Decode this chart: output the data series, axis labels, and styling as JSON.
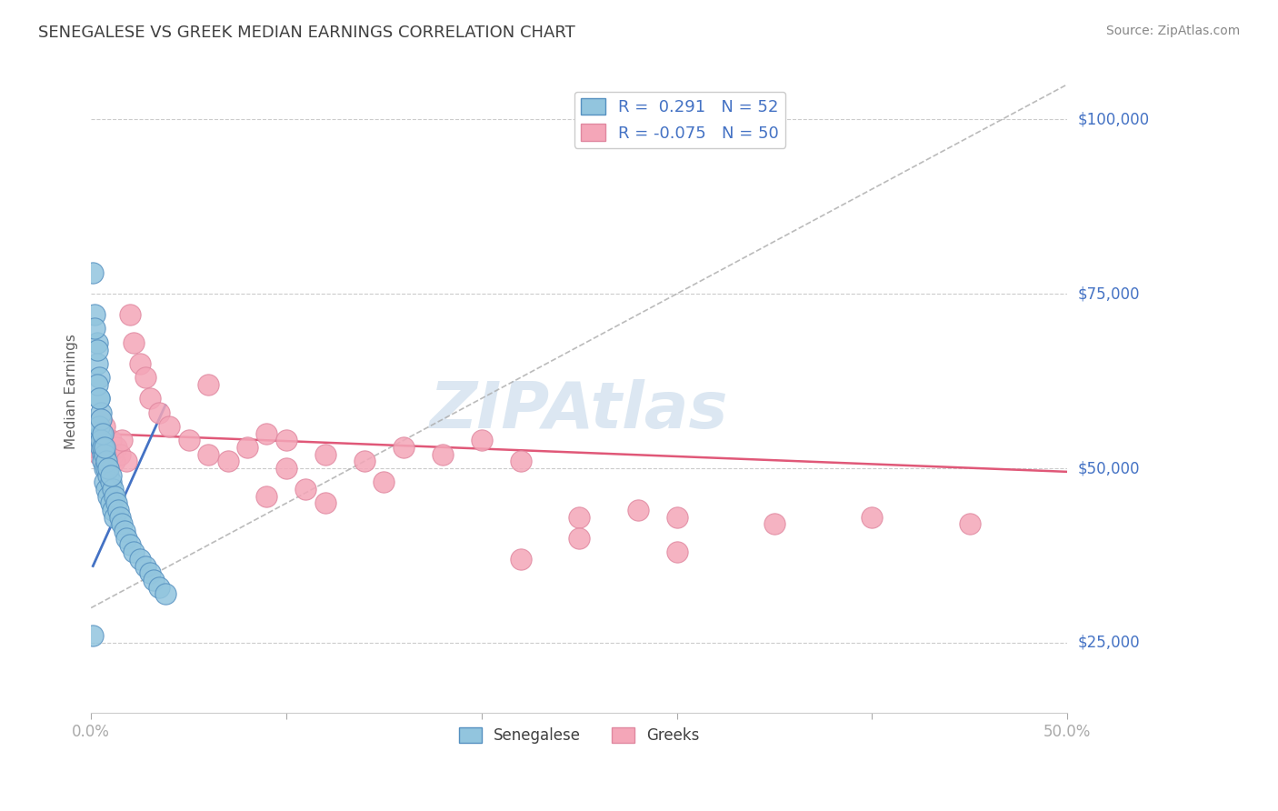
{
  "title": "SENEGALESE VS GREEK MEDIAN EARNINGS CORRELATION CHART",
  "source_text": "Source: ZipAtlas.com",
  "ylabel": "Median Earnings",
  "xlim": [
    0.0,
    0.5
  ],
  "ylim": [
    15000,
    107000
  ],
  "yticks": [
    25000,
    50000,
    75000,
    100000
  ],
  "ytick_labels": [
    "$25,000",
    "$50,000",
    "$75,000",
    "$100,000"
  ],
  "xticks": [
    0.0,
    0.1,
    0.2,
    0.3,
    0.4,
    0.5
  ],
  "xtick_labels": [
    "0.0%",
    "",
    "",
    "",
    "",
    "50.0%"
  ],
  "blue_color": "#92c5de",
  "pink_color": "#f4a6b8",
  "blue_line_color": "#4472c4",
  "pink_line_color": "#e05878",
  "gray_dash_color": "#aaaaaa",
  "background_color": "#ffffff",
  "grid_color": "#cccccc",
  "title_color": "#404040",
  "axis_label_color": "#606060",
  "tick_label_color": "#4472c4",
  "watermark_color": "#c5d8ea",
  "senegalese_x": [
    0.001,
    0.002,
    0.003,
    0.003,
    0.004,
    0.004,
    0.005,
    0.005,
    0.005,
    0.006,
    0.006,
    0.007,
    0.007,
    0.008,
    0.008,
    0.009,
    0.009,
    0.01,
    0.01,
    0.011,
    0.011,
    0.012,
    0.012,
    0.013,
    0.014,
    0.015,
    0.016,
    0.017,
    0.018,
    0.02,
    0.022,
    0.025,
    0.028,
    0.03,
    0.032,
    0.035,
    0.038,
    0.004,
    0.005,
    0.006,
    0.007,
    0.008,
    0.009,
    0.01,
    0.003,
    0.004,
    0.005,
    0.006,
    0.007,
    0.003,
    0.002,
    0.001
  ],
  "senegalese_y": [
    78000,
    72000,
    68000,
    65000,
    63000,
    60000,
    58000,
    55000,
    53000,
    52000,
    51000,
    50000,
    48000,
    50000,
    47000,
    49000,
    46000,
    48000,
    45000,
    47000,
    44000,
    46000,
    43000,
    45000,
    44000,
    43000,
    42000,
    41000,
    40000,
    39000,
    38000,
    37000,
    36000,
    35000,
    34000,
    33000,
    32000,
    56000,
    54000,
    53000,
    52000,
    51000,
    50000,
    49000,
    62000,
    60000,
    57000,
    55000,
    53000,
    67000,
    70000,
    26000
  ],
  "greeks_x": [
    0.002,
    0.004,
    0.006,
    0.007,
    0.008,
    0.009,
    0.01,
    0.011,
    0.012,
    0.013,
    0.015,
    0.016,
    0.018,
    0.02,
    0.022,
    0.025,
    0.028,
    0.03,
    0.035,
    0.04,
    0.05,
    0.06,
    0.07,
    0.08,
    0.09,
    0.1,
    0.12,
    0.14,
    0.16,
    0.18,
    0.2,
    0.22,
    0.25,
    0.28,
    0.3,
    0.35,
    0.4,
    0.45,
    0.06,
    0.1,
    0.15,
    0.12,
    0.11,
    0.09,
    0.25,
    0.007,
    0.006,
    0.005,
    0.3,
    0.22
  ],
  "greeks_y": [
    53000,
    52000,
    54000,
    51000,
    53000,
    50000,
    54000,
    52000,
    51000,
    53000,
    52000,
    54000,
    51000,
    72000,
    68000,
    65000,
    63000,
    60000,
    58000,
    56000,
    54000,
    52000,
    51000,
    53000,
    55000,
    54000,
    52000,
    51000,
    53000,
    52000,
    54000,
    51000,
    43000,
    44000,
    43000,
    42000,
    43000,
    42000,
    62000,
    50000,
    48000,
    45000,
    47000,
    46000,
    40000,
    56000,
    55000,
    57000,
    38000,
    37000
  ],
  "blue_dash_trend_x": [
    0.0,
    0.5
  ],
  "blue_dash_trend_y": [
    30000,
    105000
  ],
  "blue_solid_trend_x": [
    0.001,
    0.038
  ],
  "blue_solid_trend_y": [
    36000,
    59000
  ],
  "pink_trend_x": [
    0.0,
    0.5
  ],
  "pink_trend_y": [
    55000,
    49500
  ],
  "R_blue": 0.291,
  "N_blue": 52,
  "R_pink": -0.075,
  "N_pink": 50
}
